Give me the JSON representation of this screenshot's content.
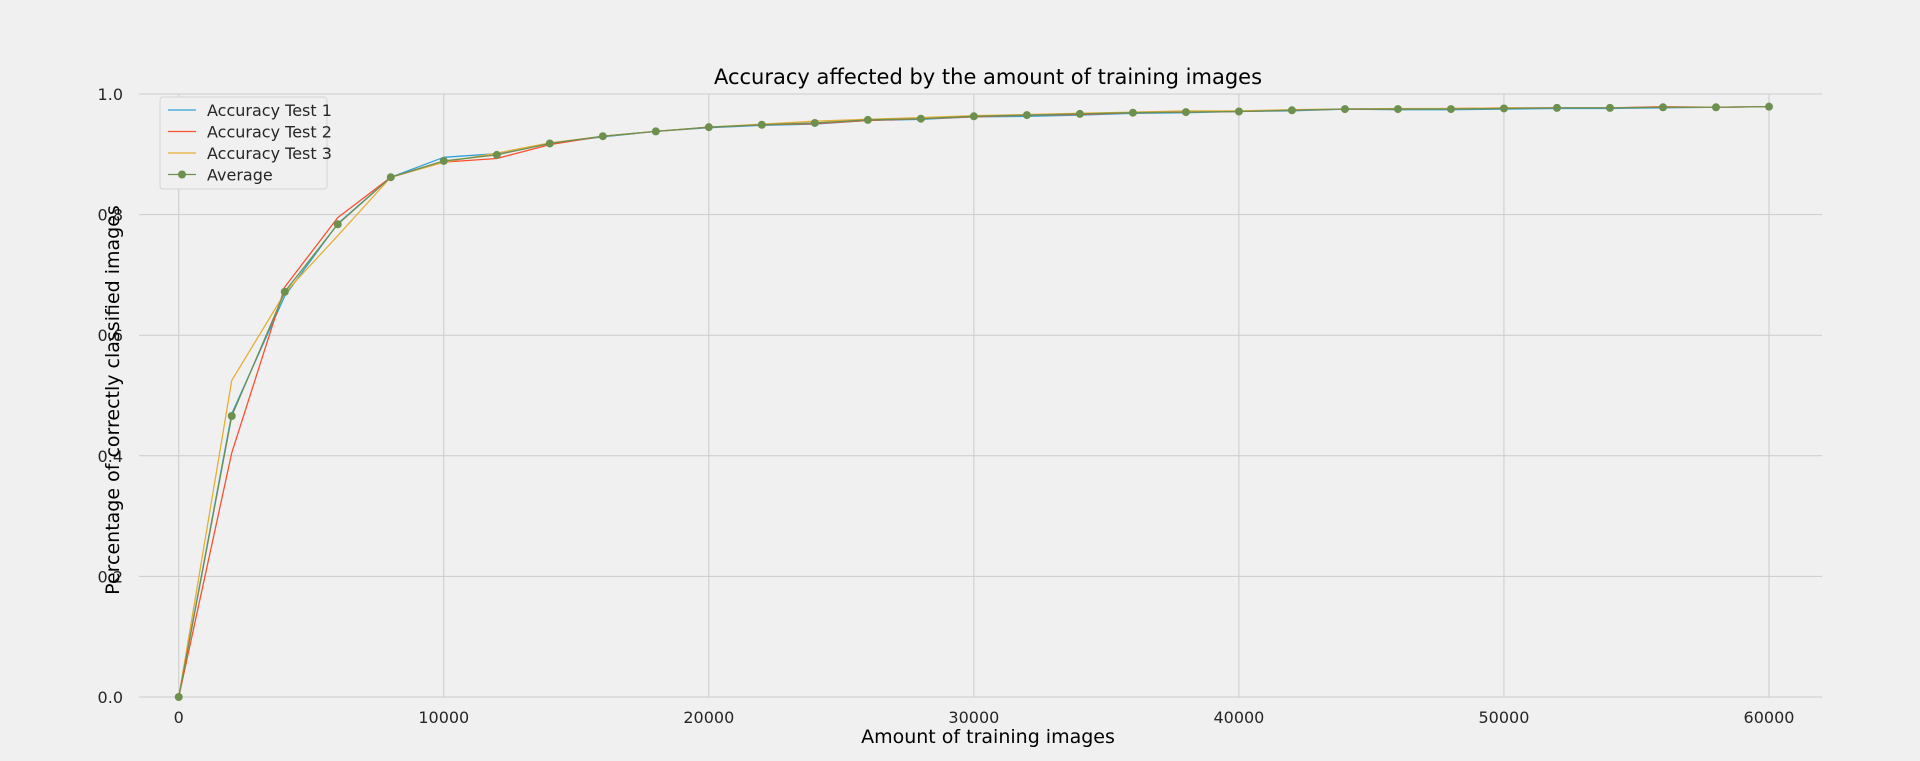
{
  "chart_data": {
    "type": "line",
    "title": "Accuracy affected by the amount of training images",
    "xlabel": "Amount of training images",
    "ylabel": "Percentage of correctly classified images",
    "xlim": [
      -1500,
      62000
    ],
    "ylim": [
      0.0,
      1.0
    ],
    "xticks": [
      0,
      10000,
      20000,
      30000,
      40000,
      50000,
      60000
    ],
    "xtick_labels": [
      "0",
      "10000",
      "20000",
      "30000",
      "40000",
      "50000",
      "60000"
    ],
    "yticks": [
      0.0,
      0.2,
      0.4,
      0.6,
      0.8,
      1.0
    ],
    "ytick_labels": [
      "0.0",
      "0.2",
      "0.4",
      "0.6",
      "0.8",
      "1.0"
    ],
    "grid": true,
    "legend_position": "top-left",
    "x": [
      0,
      2000,
      4000,
      6000,
      8000,
      10000,
      12000,
      14000,
      16000,
      18000,
      20000,
      22000,
      24000,
      26000,
      28000,
      30000,
      32000,
      34000,
      36000,
      38000,
      40000,
      42000,
      44000,
      46000,
      48000,
      50000,
      52000,
      54000,
      56000,
      58000,
      60000
    ],
    "series": [
      {
        "name": "Accuracy Test 1",
        "color": "#30a2da",
        "marker": false,
        "values": [
          0.0,
          0.47,
          0.665,
          0.785,
          0.862,
          0.895,
          0.901,
          0.918,
          0.929,
          0.938,
          0.944,
          0.948,
          0.95,
          0.956,
          0.958,
          0.962,
          0.963,
          0.965,
          0.968,
          0.969,
          0.971,
          0.972,
          0.975,
          0.974,
          0.974,
          0.975,
          0.976,
          0.976,
          0.977,
          0.978,
          0.979
        ]
      },
      {
        "name": "Accuracy Test 2",
        "color": "#fc4f30",
        "marker": false,
        "values": [
          0.0,
          0.405,
          0.68,
          0.795,
          0.862,
          0.887,
          0.893,
          0.916,
          0.93,
          0.938,
          0.945,
          0.949,
          0.951,
          0.956,
          0.959,
          0.962,
          0.965,
          0.966,
          0.969,
          0.97,
          0.971,
          0.973,
          0.975,
          0.975,
          0.976,
          0.977,
          0.977,
          0.977,
          0.979,
          0.978,
          0.979
        ]
      },
      {
        "name": "Accuracy Test 3",
        "color": "#e5ae38",
        "marker": false,
        "values": [
          0.0,
          0.525,
          0.67,
          0.765,
          0.862,
          0.887,
          0.902,
          0.919,
          0.93,
          0.938,
          0.945,
          0.95,
          0.955,
          0.958,
          0.961,
          0.964,
          0.966,
          0.968,
          0.97,
          0.972,
          0.972,
          0.974,
          0.975,
          0.976,
          0.976,
          0.977,
          0.977,
          0.977,
          0.978,
          0.978,
          0.979
        ]
      },
      {
        "name": "Average",
        "color": "#6d904f",
        "marker": true,
        "values": [
          0.0,
          0.466,
          0.672,
          0.784,
          0.862,
          0.889,
          0.899,
          0.918,
          0.93,
          0.938,
          0.945,
          0.949,
          0.952,
          0.957,
          0.959,
          0.963,
          0.965,
          0.967,
          0.969,
          0.97,
          0.971,
          0.973,
          0.975,
          0.975,
          0.975,
          0.976,
          0.977,
          0.977,
          0.978,
          0.978,
          0.979
        ]
      }
    ]
  }
}
